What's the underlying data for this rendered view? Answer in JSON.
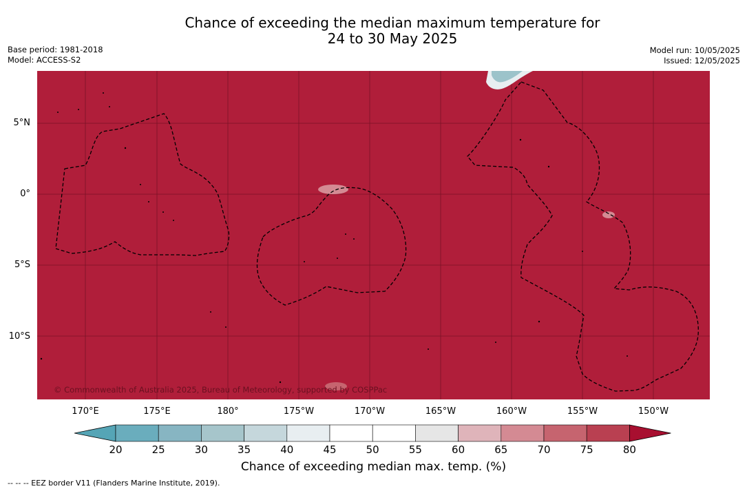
{
  "title": {
    "line1": "Chance of exceeding the median maximum temperature for",
    "line2": "24 to 30 May 2025"
  },
  "meta_left": {
    "base_period": "Base period: 1981-2018",
    "model": "Model: ACCESS-S2"
  },
  "meta_right": {
    "model_run": "Model run: 10/05/2025",
    "issued": "Issued: 12/05/2025"
  },
  "copyright": "© Commonwealth of Australia 2025, Bureau of Meteorology, supported by COSPPac",
  "lat_labels": [
    "5°N",
    "0°",
    "5°S",
    "10°S"
  ],
  "lon_labels": [
    "170°E",
    "175°E",
    "180°",
    "175°W",
    "170°W",
    "165°W",
    "160°W",
    "155°W",
    "150°W"
  ],
  "colorbar": {
    "ticks": [
      "20",
      "25",
      "30",
      "35",
      "40",
      "45",
      "50",
      "55",
      "60",
      "65",
      "70",
      "75",
      "80"
    ],
    "colors": [
      "#6aadbd",
      "#87b5c2",
      "#a6c5cb",
      "#c5d7dc",
      "#e8eef1",
      "#ffffff",
      "#ffffff",
      "#e6e6e6",
      "#dfb4ba",
      "#d48a93",
      "#c6646f",
      "#b94051"
    ],
    "under_color": "#55a5b6",
    "over_color": "#a80f30",
    "label": "Chance of exceeding median max. temp. (%)"
  },
  "map_fill_color": "#b01e3a",
  "footer": "--  --  -- EEZ border V11 (Flanders Marine Institute, 2019)."
}
